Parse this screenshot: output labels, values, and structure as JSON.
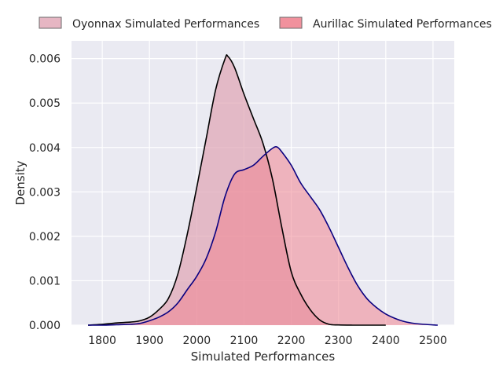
{
  "chart_data": {
    "type": "area",
    "title": "",
    "xlabel": "Simulated Performances",
    "ylabel": "Density",
    "xlim": [
      1735,
      2545
    ],
    "ylim": [
      0,
      0.0064
    ],
    "xticks": [
      1800,
      1900,
      2000,
      2100,
      2200,
      2300,
      2400,
      2500
    ],
    "yticks": [
      0.0,
      0.001,
      0.002,
      0.003,
      0.004,
      0.005,
      0.006
    ],
    "ytick_labels": [
      "0.000",
      "0.001",
      "0.002",
      "0.003",
      "0.004",
      "0.005",
      "0.006"
    ],
    "grid": true,
    "legend_placement": "top-center, outside plot",
    "series": [
      {
        "name": "Oyonnax Simulated Performances",
        "fill_color": "#e0a4b4",
        "line_color": "#000000",
        "x": [
          1770,
          1800,
          1830,
          1860,
          1880,
          1900,
          1920,
          1940,
          1960,
          1980,
          2000,
          2020,
          2040,
          2060,
          2066,
          2080,
          2100,
          2120,
          2140,
          2160,
          2180,
          2200,
          2220,
          2240,
          2260,
          2280,
          2300,
          2330,
          2360,
          2400
        ],
        "y": [
          0.0,
          2e-05,
          5e-05,
          7e-05,
          0.0001,
          0.00018,
          0.00035,
          0.0006,
          0.00115,
          0.00205,
          0.0031,
          0.0042,
          0.0053,
          0.006,
          0.00605,
          0.0058,
          0.0052,
          0.00465,
          0.0041,
          0.0033,
          0.0022,
          0.0012,
          0.0007,
          0.00035,
          0.00012,
          2e-05,
          5e-06,
          0.0,
          0.0,
          0.0
        ]
      },
      {
        "name": "Aurillac Simulated Performances",
        "fill_color": "#f08592",
        "line_color": "#0a0080",
        "x": [
          1770,
          1800,
          1830,
          1860,
          1880,
          1900,
          1920,
          1940,
          1960,
          1980,
          2000,
          2020,
          2040,
          2060,
          2080,
          2100,
          2120,
          2140,
          2160,
          2170,
          2180,
          2200,
          2220,
          2240,
          2260,
          2280,
          2300,
          2320,
          2340,
          2360,
          2380,
          2400,
          2420,
          2440,
          2460,
          2480,
          2510
        ],
        "y": [
          0.0,
          0.0,
          1e-05,
          2e-05,
          4e-05,
          0.0001,
          0.00018,
          0.0003,
          0.0005,
          0.0008,
          0.0011,
          0.0015,
          0.0021,
          0.0029,
          0.0034,
          0.0035,
          0.0036,
          0.0038,
          0.00398,
          0.00401,
          0.0039,
          0.0036,
          0.0032,
          0.0029,
          0.0026,
          0.0022,
          0.00175,
          0.0013,
          0.0009,
          0.0006,
          0.0004,
          0.00025,
          0.00015,
          8e-05,
          4e-05,
          2e-05,
          0.0
        ]
      }
    ]
  }
}
